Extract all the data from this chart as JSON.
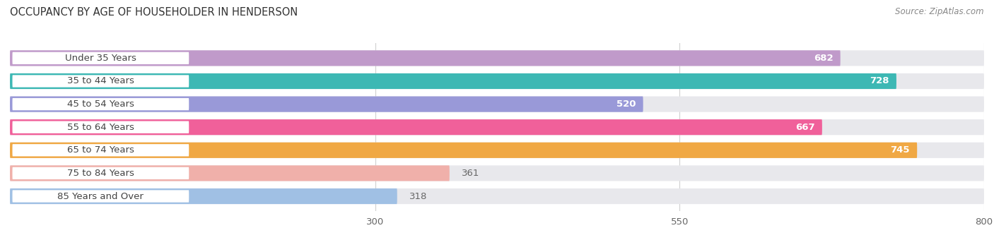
{
  "title": "OCCUPANCY BY AGE OF HOUSEHOLDER IN HENDERSON",
  "source": "Source: ZipAtlas.com",
  "categories": [
    "Under 35 Years",
    "35 to 44 Years",
    "45 to 54 Years",
    "55 to 64 Years",
    "65 to 74 Years",
    "75 to 84 Years",
    "85 Years and Over"
  ],
  "values": [
    682,
    728,
    520,
    667,
    745,
    361,
    318
  ],
  "bar_colors": [
    "#c09aca",
    "#3db8b4",
    "#9999d8",
    "#f0609a",
    "#f0a844",
    "#f0b0aa",
    "#a0c0e4"
  ],
  "track_color": "#e8e8ec",
  "label_bg": "#ffffff",
  "label_text_color": "#444444",
  "value_color_inside": "#ffffff",
  "value_color_outside": "#666666",
  "xlim_data": [
    0,
    800
  ],
  "xticks": [
    300,
    550,
    800
  ],
  "bar_height": 0.68,
  "background_color": "#ffffff",
  "title_fontsize": 10.5,
  "source_fontsize": 8.5,
  "label_fontsize": 9.5,
  "value_fontsize": 9.5,
  "tick_fontsize": 9.5,
  "value_threshold": 420
}
